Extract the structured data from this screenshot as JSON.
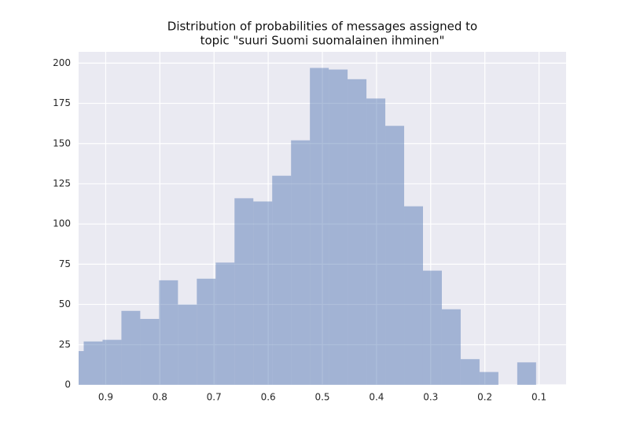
{
  "chart_data": {
    "type": "histogram",
    "title": [
      "Distribution of probabilities of messages assigned to",
      "topic \"suuri Suomi suomalainen ihminen\""
    ],
    "bins": [
      0.9754,
      0.9406,
      0.9058,
      0.871,
      0.8362,
      0.8014,
      0.7666,
      0.7318,
      0.697,
      0.6622,
      0.6274,
      0.5926,
      0.5578,
      0.523,
      0.4882,
      0.4534,
      0.4186,
      0.3838,
      0.349,
      0.3142,
      0.2794,
      0.2446,
      0.2098,
      0.175,
      0.1402,
      0.1054
    ],
    "values": [
      21,
      27,
      28,
      46,
      41,
      65,
      50,
      66,
      76,
      116,
      114,
      130,
      152,
      197,
      196,
      190,
      178,
      161,
      111,
      71,
      47,
      16,
      8,
      0,
      14
    ],
    "color": "#4c72b0",
    "opacity": 0.45,
    "xlim": [
      0.95,
      0.05
    ],
    "xticks": [
      0.9,
      0.8,
      0.7,
      0.6,
      0.5,
      0.4,
      0.3,
      0.2,
      0.1
    ],
    "ylim": [
      0,
      207
    ],
    "yticks": [
      0,
      25,
      50,
      75,
      100,
      125,
      150,
      175,
      200
    ],
    "grid": true
  }
}
